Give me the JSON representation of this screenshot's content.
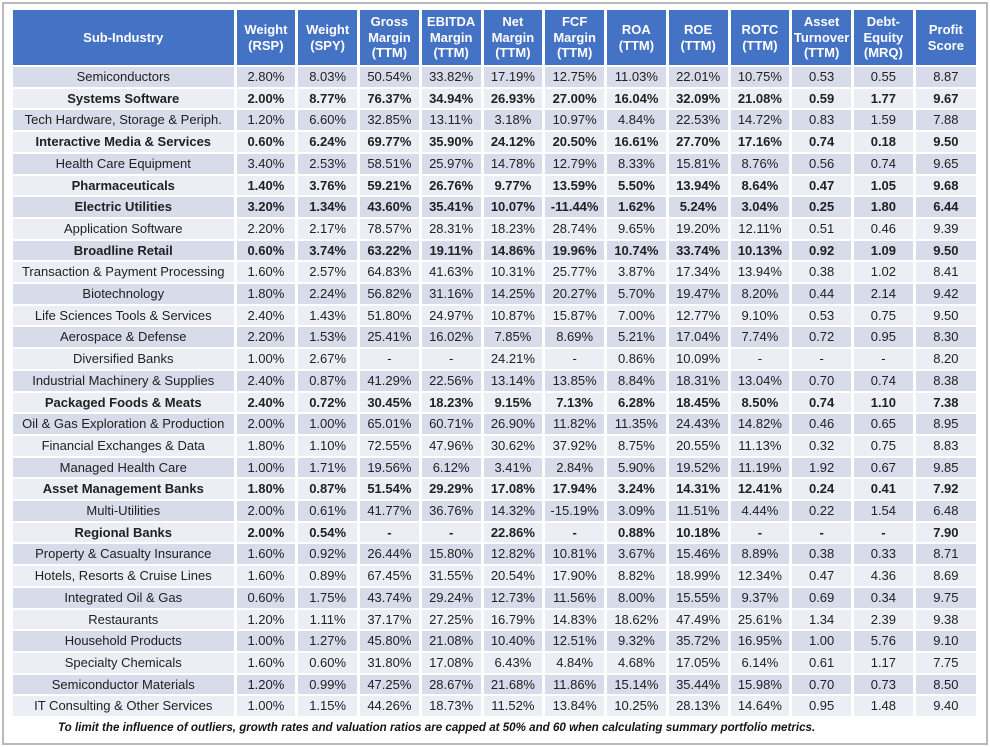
{
  "table": {
    "styles": {
      "header_bg": "#4472C4",
      "header_text": "#FFFFFF",
      "band_color": "#D7DBEA",
      "alt_color": "#ECEEF6",
      "grid_color": "#FFFFFF"
    },
    "columns": [
      {
        "key": "sub-industry",
        "label": "Sub-Industry"
      },
      {
        "key": "weight-rsp",
        "label": "Weight\n(RSP)"
      },
      {
        "key": "weight-spy",
        "label": "Weight\n(SPY)"
      },
      {
        "key": "gross-margin",
        "label": "Gross\nMargin\n(TTM)"
      },
      {
        "key": "ebitda-margin",
        "label": "EBITDA\nMargin\n(TTM)"
      },
      {
        "key": "net-margin",
        "label": "Net\nMargin\n(TTM)"
      },
      {
        "key": "fcf-margin",
        "label": "FCF\nMargin\n(TTM)"
      },
      {
        "key": "roa",
        "label": "ROA\n(TTM)"
      },
      {
        "key": "roe",
        "label": "ROE\n(TTM)"
      },
      {
        "key": "rotc",
        "label": "ROTC\n(TTM)"
      },
      {
        "key": "asset-turnover",
        "label": "Asset\nTurnover\n(TTM)"
      },
      {
        "key": "debt-equity",
        "label": "Debt-\nEquity\n(MRQ)"
      },
      {
        "key": "profit-score",
        "label": "Profit\nScore"
      }
    ],
    "rows": [
      {
        "name": "Semiconductors",
        "bold": false,
        "values": [
          "2.80%",
          "8.03%",
          "50.54%",
          "33.82%",
          "17.19%",
          "12.75%",
          "11.03%",
          "22.01%",
          "10.75%",
          "0.53",
          "0.55",
          "8.87"
        ]
      },
      {
        "name": "Systems Software",
        "bold": true,
        "values": [
          "2.00%",
          "8.77%",
          "76.37%",
          "34.94%",
          "26.93%",
          "27.00%",
          "16.04%",
          "32.09%",
          "21.08%",
          "0.59",
          "1.77",
          "9.67"
        ]
      },
      {
        "name": "Tech Hardware, Storage & Periph.",
        "bold": false,
        "values": [
          "1.20%",
          "6.60%",
          "32.85%",
          "13.11%",
          "3.18%",
          "10.97%",
          "4.84%",
          "22.53%",
          "14.72%",
          "0.83",
          "1.59",
          "7.88"
        ]
      },
      {
        "name": "Interactive Media & Services",
        "bold": true,
        "values": [
          "0.60%",
          "6.24%",
          "69.77%",
          "35.90%",
          "24.12%",
          "20.50%",
          "16.61%",
          "27.70%",
          "17.16%",
          "0.74",
          "0.18",
          "9.50"
        ]
      },
      {
        "name": "Health Care Equipment",
        "bold": false,
        "values": [
          "3.40%",
          "2.53%",
          "58.51%",
          "25.97%",
          "14.78%",
          "12.79%",
          "8.33%",
          "15.81%",
          "8.76%",
          "0.56",
          "0.74",
          "9.65"
        ]
      },
      {
        "name": "Pharmaceuticals",
        "bold": true,
        "values": [
          "1.40%",
          "3.76%",
          "59.21%",
          "26.76%",
          "9.77%",
          "13.59%",
          "5.50%",
          "13.94%",
          "8.64%",
          "0.47",
          "1.05",
          "9.68"
        ]
      },
      {
        "name": "Electric Utilities",
        "bold": true,
        "values": [
          "3.20%",
          "1.34%",
          "43.60%",
          "35.41%",
          "10.07%",
          "-11.44%",
          "1.62%",
          "5.24%",
          "3.04%",
          "0.25",
          "1.80",
          "6.44"
        ]
      },
      {
        "name": "Application Software",
        "bold": false,
        "values": [
          "2.20%",
          "2.17%",
          "78.57%",
          "28.31%",
          "18.23%",
          "28.74%",
          "9.65%",
          "19.20%",
          "12.11%",
          "0.51",
          "0.46",
          "9.39"
        ]
      },
      {
        "name": "Broadline Retail",
        "bold": true,
        "values": [
          "0.60%",
          "3.74%",
          "63.22%",
          "19.11%",
          "14.86%",
          "19.96%",
          "10.74%",
          "33.74%",
          "10.13%",
          "0.92",
          "1.09",
          "9.50"
        ]
      },
      {
        "name": "Transaction & Payment Processing",
        "bold": false,
        "values": [
          "1.60%",
          "2.57%",
          "64.83%",
          "41.63%",
          "10.31%",
          "25.77%",
          "3.87%",
          "17.34%",
          "13.94%",
          "0.38",
          "1.02",
          "8.41"
        ]
      },
      {
        "name": "Biotechnology",
        "bold": false,
        "values": [
          "1.80%",
          "2.24%",
          "56.82%",
          "31.16%",
          "14.25%",
          "20.27%",
          "5.70%",
          "19.47%",
          "8.20%",
          "0.44",
          "2.14",
          "9.42"
        ]
      },
      {
        "name": "Life Sciences Tools & Services",
        "bold": false,
        "values": [
          "2.40%",
          "1.43%",
          "51.80%",
          "24.97%",
          "10.87%",
          "15.87%",
          "7.00%",
          "12.77%",
          "9.10%",
          "0.53",
          "0.75",
          "9.50"
        ]
      },
      {
        "name": "Aerospace & Defense",
        "bold": false,
        "values": [
          "2.20%",
          "1.53%",
          "25.41%",
          "16.02%",
          "7.85%",
          "8.69%",
          "5.21%",
          "17.04%",
          "7.74%",
          "0.72",
          "0.95",
          "8.30"
        ]
      },
      {
        "name": "Diversified Banks",
        "bold": false,
        "values": [
          "1.00%",
          "2.67%",
          "-",
          "-",
          "24.21%",
          "-",
          "0.86%",
          "10.09%",
          "-",
          "-",
          "-",
          "8.20"
        ]
      },
      {
        "name": "Industrial Machinery & Supplies",
        "bold": false,
        "values": [
          "2.40%",
          "0.87%",
          "41.29%",
          "22.56%",
          "13.14%",
          "13.85%",
          "8.84%",
          "18.31%",
          "13.04%",
          "0.70",
          "0.74",
          "8.38"
        ]
      },
      {
        "name": "Packaged Foods & Meats",
        "bold": true,
        "values": [
          "2.40%",
          "0.72%",
          "30.45%",
          "18.23%",
          "9.15%",
          "7.13%",
          "6.28%",
          "18.45%",
          "8.50%",
          "0.74",
          "1.10",
          "7.38"
        ]
      },
      {
        "name": "Oil & Gas Exploration & Production",
        "bold": false,
        "values": [
          "2.00%",
          "1.00%",
          "65.01%",
          "60.71%",
          "26.90%",
          "11.82%",
          "11.35%",
          "24.43%",
          "14.82%",
          "0.46",
          "0.65",
          "8.95"
        ]
      },
      {
        "name": "Financial Exchanges & Data",
        "bold": false,
        "values": [
          "1.80%",
          "1.10%",
          "72.55%",
          "47.96%",
          "30.62%",
          "37.92%",
          "8.75%",
          "20.55%",
          "11.13%",
          "0.32",
          "0.75",
          "8.83"
        ]
      },
      {
        "name": "Managed Health Care",
        "bold": false,
        "values": [
          "1.00%",
          "1.71%",
          "19.56%",
          "6.12%",
          "3.41%",
          "2.84%",
          "5.90%",
          "19.52%",
          "11.19%",
          "1.92",
          "0.67",
          "9.85"
        ]
      },
      {
        "name": "Asset Management Banks",
        "bold": true,
        "values": [
          "1.80%",
          "0.87%",
          "51.54%",
          "29.29%",
          "17.08%",
          "17.94%",
          "3.24%",
          "14.31%",
          "12.41%",
          "0.24",
          "0.41",
          "7.92"
        ]
      },
      {
        "name": "Multi-Utilities",
        "bold": false,
        "values": [
          "2.00%",
          "0.61%",
          "41.77%",
          "36.76%",
          "14.32%",
          "-15.19%",
          "3.09%",
          "11.51%",
          "4.44%",
          "0.22",
          "1.54",
          "6.48"
        ]
      },
      {
        "name": "Regional Banks",
        "bold": true,
        "values": [
          "2.00%",
          "0.54%",
          "-",
          "-",
          "22.86%",
          "-",
          "0.88%",
          "10.18%",
          "-",
          "-",
          "-",
          "7.90"
        ]
      },
      {
        "name": "Property & Casualty Insurance",
        "bold": false,
        "values": [
          "1.60%",
          "0.92%",
          "26.44%",
          "15.80%",
          "12.82%",
          "10.81%",
          "3.67%",
          "15.46%",
          "8.89%",
          "0.38",
          "0.33",
          "8.71"
        ]
      },
      {
        "name": "Hotels, Resorts & Cruise Lines",
        "bold": false,
        "values": [
          "1.60%",
          "0.89%",
          "67.45%",
          "31.55%",
          "20.54%",
          "17.90%",
          "8.82%",
          "18.99%",
          "12.34%",
          "0.47",
          "4.36",
          "8.69"
        ]
      },
      {
        "name": "Integrated Oil & Gas",
        "bold": false,
        "values": [
          "0.60%",
          "1.75%",
          "43.74%",
          "29.24%",
          "12.73%",
          "11.56%",
          "8.00%",
          "15.55%",
          "9.37%",
          "0.69",
          "0.34",
          "9.75"
        ]
      },
      {
        "name": "Restaurants",
        "bold": false,
        "values": [
          "1.20%",
          "1.11%",
          "37.17%",
          "27.25%",
          "16.79%",
          "14.83%",
          "18.62%",
          "47.49%",
          "25.61%",
          "1.34",
          "2.39",
          "9.38"
        ]
      },
      {
        "name": "Household Products",
        "bold": false,
        "values": [
          "1.00%",
          "1.27%",
          "45.80%",
          "21.08%",
          "10.40%",
          "12.51%",
          "9.32%",
          "35.72%",
          "16.95%",
          "1.00",
          "5.76",
          "9.10"
        ]
      },
      {
        "name": "Specialty Chemicals",
        "bold": false,
        "values": [
          "1.60%",
          "0.60%",
          "31.80%",
          "17.08%",
          "6.43%",
          "4.84%",
          "4.68%",
          "17.05%",
          "6.14%",
          "0.61",
          "1.17",
          "7.75"
        ]
      },
      {
        "name": "Semiconductor Materials",
        "bold": false,
        "values": [
          "1.20%",
          "0.99%",
          "47.25%",
          "28.67%",
          "21.68%",
          "11.86%",
          "15.14%",
          "35.44%",
          "15.98%",
          "0.70",
          "0.73",
          "8.50"
        ]
      },
      {
        "name": "IT Consulting & Other Services",
        "bold": false,
        "values": [
          "1.00%",
          "1.15%",
          "44.26%",
          "18.73%",
          "11.52%",
          "13.84%",
          "10.25%",
          "28.13%",
          "14.64%",
          "0.95",
          "1.48",
          "9.40"
        ]
      }
    ]
  },
  "footer": {
    "note": "To limit the influence of outliers, growth rates and valuation ratios are capped at 50% and 60 when calculating summary portfolio metrics."
  }
}
